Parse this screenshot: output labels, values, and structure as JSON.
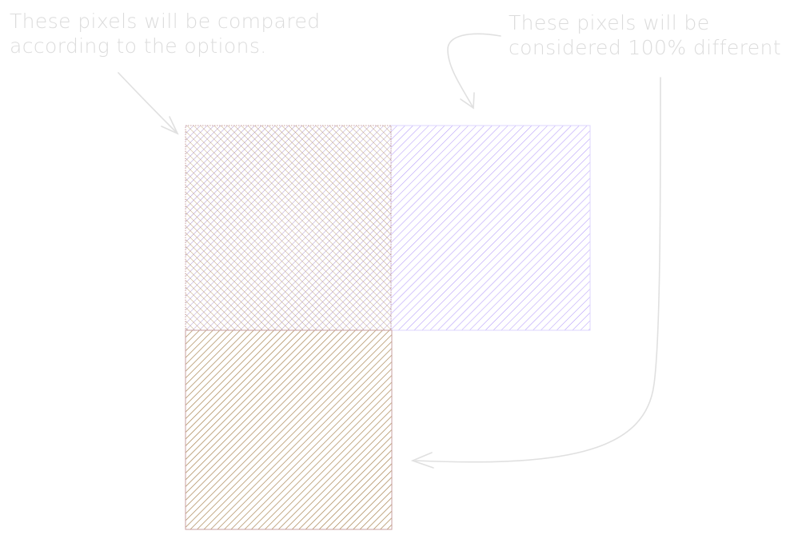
{
  "annotations": {
    "compared": {
      "lines": [
        "These pixels will be compared",
        "according to the options."
      ]
    },
    "different": {
      "lines": [
        "These pixels will be",
        "considered 100% different"
      ]
    }
  },
  "colors": {
    "annotation_text": "#dcdcdc",
    "arrow": "#e0e0e0",
    "purple_hatch": "#a78bfa",
    "brown_hatch": "#a07840",
    "overlap_purple": "#9b7ec8",
    "overlap_brown": "#b08a50",
    "edge": "#c9a0a0"
  },
  "regions": {
    "overlap": {
      "name": "overlap-region",
      "pattern": "crosshatch"
    },
    "image_a_only": {
      "name": "image-a-only-region",
      "pattern": "diagonal-purple"
    },
    "image_b_only": {
      "name": "image-b-only-region",
      "pattern": "diagonal-brown"
    }
  }
}
